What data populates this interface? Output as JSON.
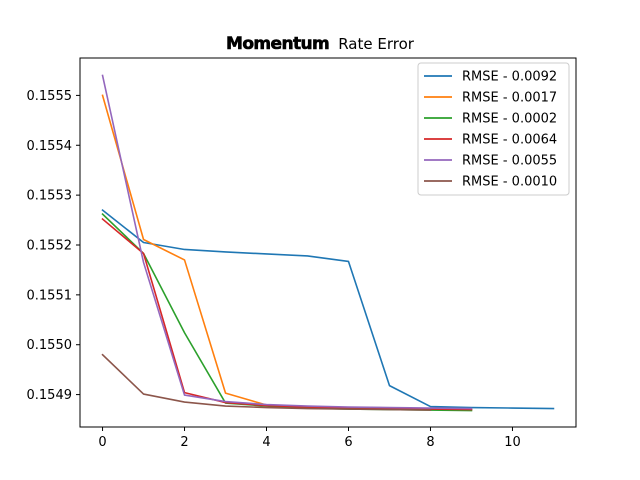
{
  "chart_data": {
    "type": "line",
    "title_bold": "Momentum",
    "title_rest": "Rate Error",
    "xlabel": "",
    "ylabel": "",
    "xlim": [
      -0.55,
      11.55
    ],
    "ylim": [
      0.154835,
      0.155575
    ],
    "xticks": [
      0,
      2,
      4,
      6,
      8,
      10
    ],
    "xtick_labels": [
      "0",
      "2",
      "4",
      "6",
      "8",
      "10"
    ],
    "yticks": [
      0.1549,
      0.155,
      0.1551,
      0.1552,
      0.1553,
      0.1554,
      0.1555
    ],
    "ytick_labels": [
      "0.1549",
      "0.1550",
      "0.1551",
      "0.1552",
      "0.1553",
      "0.1554",
      "0.1555"
    ],
    "grid": false,
    "legend_position": "top-right",
    "series": [
      {
        "name": "RMSE - 0.0092",
        "color": "#1f77b4",
        "x": [
          0,
          1,
          2,
          3,
          4,
          5,
          6,
          7,
          8,
          9,
          10,
          11
        ],
        "y": [
          0.15527,
          0.155205,
          0.155191,
          0.155186,
          0.155182,
          0.155178,
          0.155167,
          0.154918,
          0.154876,
          0.154874,
          0.154873,
          0.154872
        ]
      },
      {
        "name": "RMSE - 0.0017",
        "color": "#ff7f0e",
        "x": [
          0,
          1,
          2,
          3,
          4,
          5,
          6,
          7,
          8,
          9
        ],
        "y": [
          0.1555,
          0.155211,
          0.15517,
          0.154903,
          0.154879,
          0.154875,
          0.154873,
          0.154872,
          0.154871,
          0.15487
        ]
      },
      {
        "name": "RMSE - 0.0002",
        "color": "#2ca02c",
        "x": [
          0,
          1,
          2,
          3,
          4,
          5,
          6,
          7,
          8,
          9
        ],
        "y": [
          0.155262,
          0.155183,
          0.155024,
          0.154883,
          0.154877,
          0.154873,
          0.154871,
          0.15487,
          0.154869,
          0.154868
        ]
      },
      {
        "name": "RMSE - 0.0064",
        "color": "#d62728",
        "x": [
          0,
          1,
          2,
          3,
          4,
          5,
          6,
          7,
          8,
          9
        ],
        "y": [
          0.155252,
          0.155183,
          0.154904,
          0.154884,
          0.154878,
          0.154875,
          0.154873,
          0.154872,
          0.154871,
          0.15487
        ]
      },
      {
        "name": "RMSE - 0.0055",
        "color": "#9467bd",
        "x": [
          0,
          1,
          2,
          3,
          4,
          5,
          6,
          7,
          8,
          9
        ],
        "y": [
          0.15554,
          0.155165,
          0.154899,
          0.154886,
          0.15488,
          0.154877,
          0.154875,
          0.154874,
          0.154873,
          0.154872
        ]
      },
      {
        "name": "RMSE - 0.0010",
        "color": "#8c564b",
        "x": [
          0,
          1,
          2,
          3,
          4,
          5,
          6,
          7,
          8
        ],
        "y": [
          0.15498,
          0.154901,
          0.154885,
          0.154877,
          0.154874,
          0.154872,
          0.154871,
          0.15487,
          0.154869
        ]
      }
    ]
  }
}
